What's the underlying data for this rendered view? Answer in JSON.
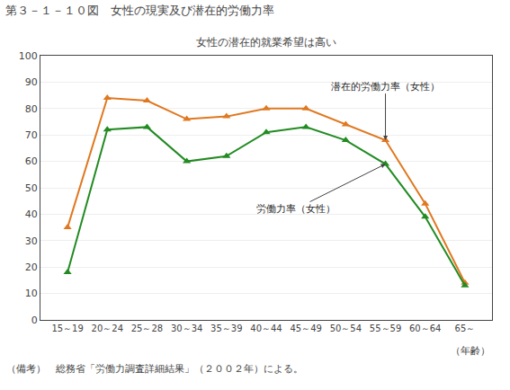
{
  "chart_data": {
    "type": "line",
    "title": "第３－１－１０図　女性の現実及び潜在的労働力率",
    "subtitle": "女性の潜在的就業希望は高い",
    "footnote": "（備考）　総務省「労働力調査詳細結果」（２００２年）による。",
    "x_label": "（年齢）",
    "categories": [
      "15～19",
      "20～24",
      "25～28",
      "30～34",
      "35～39",
      "40～44",
      "45～49",
      "50～54",
      "55～59",
      "60～64",
      "65～"
    ],
    "series": [
      {
        "name": "潜在的労働力率（女性）",
        "color": "#E07820",
        "marker": "triangle-up",
        "values": [
          35,
          84,
          83,
          76,
          77,
          80,
          80,
          74,
          68,
          44,
          14
        ]
      },
      {
        "name": "労働力率（女性）",
        "color": "#228B22",
        "marker": "triangle-up",
        "values": [
          18,
          72,
          73,
          60,
          62,
          71,
          73,
          68,
          59,
          39,
          13
        ]
      }
    ],
    "annotations": [
      {
        "text": "潜在的労働力率（女性）",
        "x": "55～59",
        "y": 68
      },
      {
        "text": "労働力率（女性）",
        "x": "55～59",
        "y": 59
      }
    ],
    "ylim": [
      0,
      100
    ],
    "yticks": [
      0,
      10,
      20,
      30,
      40,
      50,
      60,
      70,
      80,
      90,
      100
    ],
    "grid": true
  }
}
